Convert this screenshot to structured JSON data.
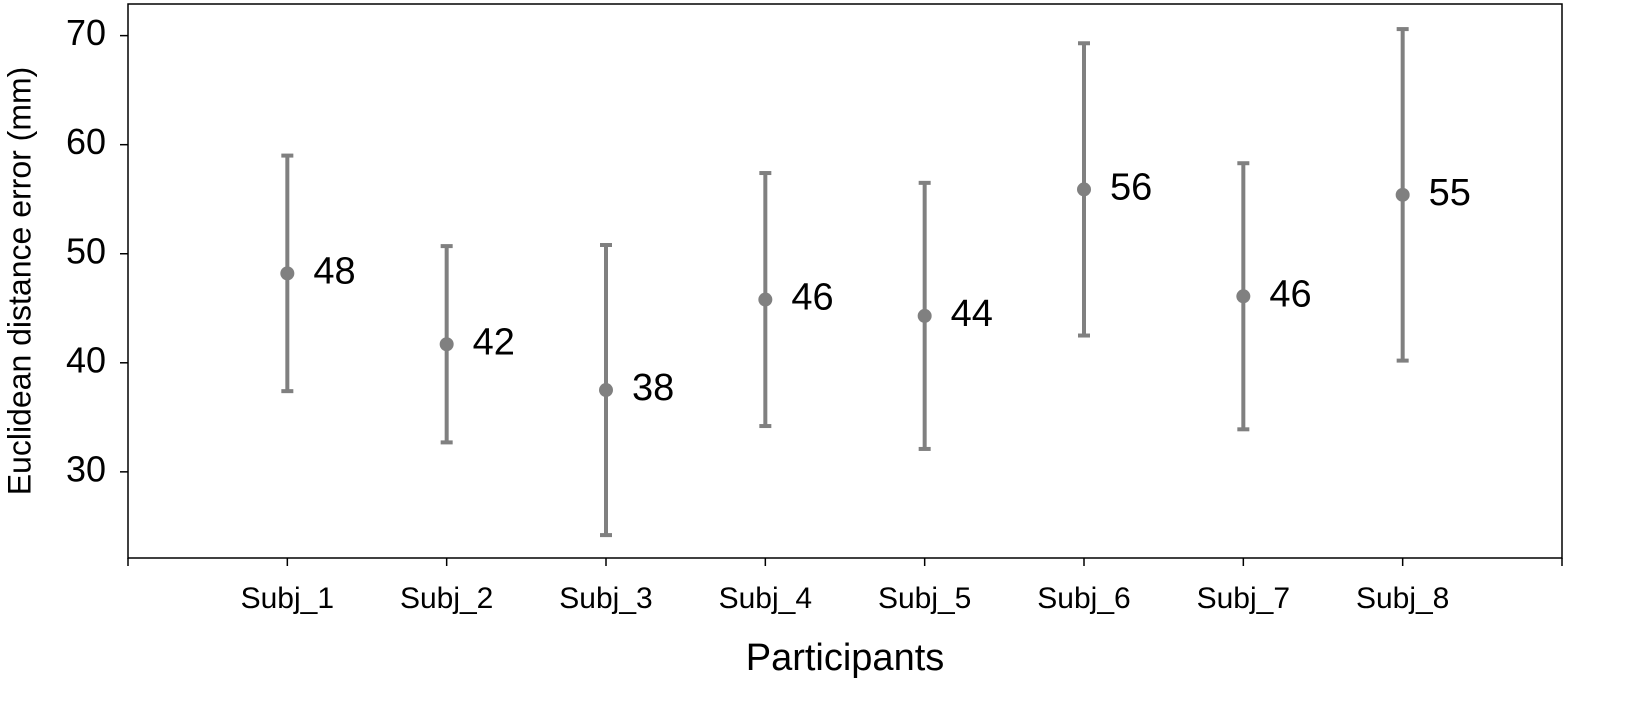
{
  "chart_data": {
    "type": "errorbar",
    "x_label": "Participants",
    "y_label": "Euclidean distance error (mm)",
    "categories": [
      "Subj_1",
      "Subj_2",
      "Subj_3",
      "Subj_4",
      "Subj_5",
      "Subj_6",
      "Subj_7",
      "Subj_8"
    ],
    "values": [
      48.2,
      41.7,
      37.5,
      45.8,
      44.3,
      55.9,
      46.1,
      55.4
    ],
    "value_labels": [
      "48",
      "42",
      "38",
      "46",
      "44",
      "56",
      "46",
      "55"
    ],
    "errors": [
      10.8,
      9.0,
      13.3,
      11.6,
      12.2,
      13.4,
      12.2,
      15.2
    ],
    "color": "#808080",
    "ylim": [
      22.1,
      72.9
    ],
    "yticks": [
      30,
      40,
      50,
      60,
      70
    ],
    "grid": false
  }
}
